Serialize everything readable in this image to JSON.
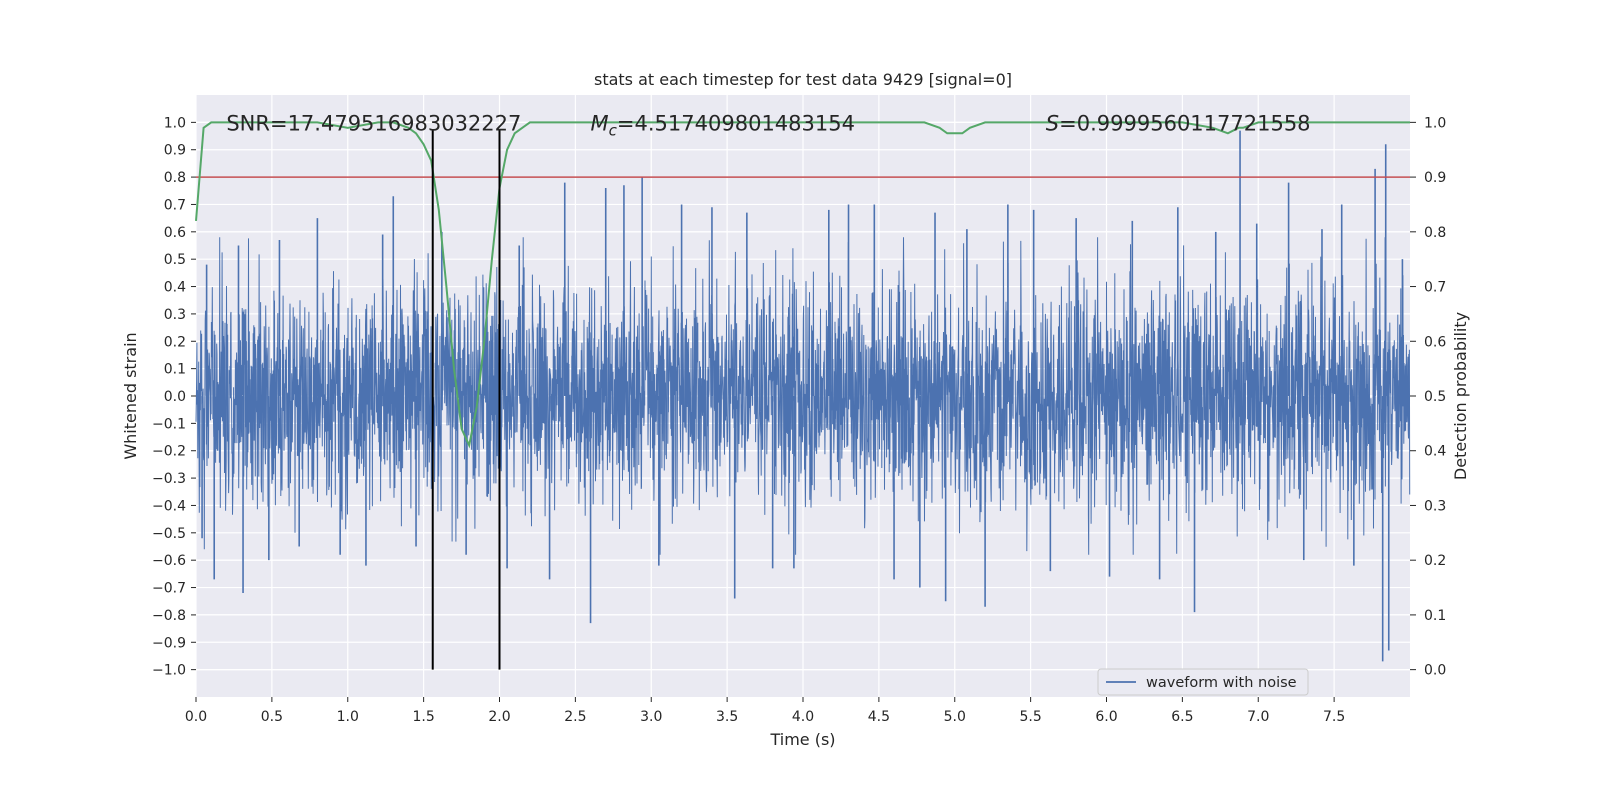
{
  "chart_data": {
    "type": "line",
    "title": "stats at each timestep for test data 9429 [signal=0]",
    "xlabel": "Time (s)",
    "ylabel_left": "Whitened strain",
    "ylabel_right": "Detection probability",
    "xlim": [
      0.0,
      8.0
    ],
    "ylim_left": [
      -1.1,
      1.1
    ],
    "ylim_right": [
      -0.05,
      1.05
    ],
    "grid": true,
    "legend_position": "bottom-right",
    "x_ticks": [
      0.0,
      0.5,
      1.0,
      1.5,
      2.0,
      2.5,
      3.0,
      3.5,
      4.0,
      4.5,
      5.0,
      5.5,
      6.0,
      6.5,
      7.0,
      7.5
    ],
    "x_tick_labels": [
      "0.0",
      "0.5",
      "1.0",
      "1.5",
      "2.0",
      "2.5",
      "3.0",
      "3.5",
      "4.0",
      "4.5",
      "5.0",
      "5.5",
      "6.0",
      "6.5",
      "7.0",
      "7.5"
    ],
    "y_ticks_left": [
      1.0,
      0.9,
      0.8,
      0.7,
      0.6,
      0.5,
      0.4,
      0.3,
      0.2,
      0.1,
      0.0,
      -0.1,
      -0.2,
      -0.3,
      -0.4,
      -0.5,
      -0.6,
      -0.7,
      -0.8,
      -0.9,
      -1.0
    ],
    "y_tick_labels_left": [
      "1.0",
      "0.9",
      "0.8",
      "0.7",
      "0.6",
      "0.5",
      "0.4",
      "0.3",
      "0.2",
      "0.1",
      "0.0",
      "−0.1",
      "−0.2",
      "−0.3",
      "−0.4",
      "−0.5",
      "−0.6",
      "−0.7",
      "−0.8",
      "−0.9",
      "−1.0"
    ],
    "y_ticks_right": [
      1.0,
      0.9,
      0.8,
      0.7,
      0.6,
      0.5,
      0.4,
      0.3,
      0.2,
      0.1,
      0.0
    ],
    "y_tick_labels_right": [
      "1.0",
      "0.9",
      "0.8",
      "0.7",
      "0.6",
      "0.5",
      "0.4",
      "0.3",
      "0.2",
      "0.1",
      "0.0"
    ],
    "annotations": [
      {
        "text": "SNR=17.479516983032227",
        "x": 0.2,
        "y": 1.0
      },
      {
        "text": "Mc=4.517409801483154",
        "x": 2.6,
        "y": 1.0
      },
      {
        "text": "S=0.9999560117721558",
        "x": 5.6,
        "y": 1.0
      }
    ],
    "series": [
      {
        "name": "waveform with noise",
        "axis": "left",
        "color": "#4c72b0",
        "kind": "noise_waveform",
        "sample_rate": 512,
        "duration": 8.0,
        "typical_amplitude": 0.22,
        "peaks": [
          {
            "x": 0.04,
            "y": -0.52
          },
          {
            "x": 0.07,
            "y": 0.48
          },
          {
            "x": 0.12,
            "y": -0.67
          },
          {
            "x": 0.28,
            "y": 0.55
          },
          {
            "x": 0.31,
            "y": -0.72
          },
          {
            "x": 0.48,
            "y": -0.6
          },
          {
            "x": 0.55,
            "y": 0.57
          },
          {
            "x": 0.68,
            "y": -0.55
          },
          {
            "x": 0.8,
            "y": 0.65
          },
          {
            "x": 0.95,
            "y": -0.58
          },
          {
            "x": 1.12,
            "y": -0.62
          },
          {
            "x": 1.23,
            "y": 0.59
          },
          {
            "x": 1.3,
            "y": 0.73
          },
          {
            "x": 1.45,
            "y": -0.55
          },
          {
            "x": 1.62,
            "y": 0.6
          },
          {
            "x": 1.78,
            "y": -0.58
          },
          {
            "x": 2.05,
            "y": -0.63
          },
          {
            "x": 2.13,
            "y": 0.55
          },
          {
            "x": 2.33,
            "y": -0.67
          },
          {
            "x": 2.43,
            "y": 0.78
          },
          {
            "x": 2.6,
            "y": -0.83
          },
          {
            "x": 2.7,
            "y": 0.76
          },
          {
            "x": 2.82,
            "y": 0.77
          },
          {
            "x": 2.94,
            "y": 0.8
          },
          {
            "x": 3.05,
            "y": -0.62
          },
          {
            "x": 3.2,
            "y": 0.7
          },
          {
            "x": 3.4,
            "y": 0.69
          },
          {
            "x": 3.55,
            "y": -0.74
          },
          {
            "x": 3.63,
            "y": 0.67
          },
          {
            "x": 3.8,
            "y": -0.63
          },
          {
            "x": 3.94,
            "y": -0.63
          },
          {
            "x": 4.17,
            "y": 0.68
          },
          {
            "x": 4.3,
            "y": 0.7
          },
          {
            "x": 4.47,
            "y": 0.7
          },
          {
            "x": 4.6,
            "y": -0.67
          },
          {
            "x": 4.77,
            "y": -0.7
          },
          {
            "x": 4.87,
            "y": 0.67
          },
          {
            "x": 4.94,
            "y": -0.75
          },
          {
            "x": 5.08,
            "y": 0.61
          },
          {
            "x": 5.2,
            "y": -0.77
          },
          {
            "x": 5.35,
            "y": 0.7
          },
          {
            "x": 5.52,
            "y": 0.68
          },
          {
            "x": 5.63,
            "y": -0.64
          },
          {
            "x": 5.8,
            "y": 0.65
          },
          {
            "x": 6.02,
            "y": -0.66
          },
          {
            "x": 6.17,
            "y": 0.64
          },
          {
            "x": 6.35,
            "y": -0.67
          },
          {
            "x": 6.47,
            "y": 0.69
          },
          {
            "x": 6.58,
            "y": -0.79
          },
          {
            "x": 6.72,
            "y": 0.6
          },
          {
            "x": 6.88,
            "y": 0.97
          },
          {
            "x": 6.99,
            "y": 0.63
          },
          {
            "x": 7.2,
            "y": 0.78
          },
          {
            "x": 7.3,
            "y": -0.6
          },
          {
            "x": 7.42,
            "y": 0.61
          },
          {
            "x": 7.55,
            "y": 0.7
          },
          {
            "x": 7.63,
            "y": -0.62
          },
          {
            "x": 7.77,
            "y": 0.83
          },
          {
            "x": 7.82,
            "y": -0.97
          },
          {
            "x": 7.84,
            "y": 0.92
          },
          {
            "x": 7.86,
            "y": -0.93
          },
          {
            "x": 7.95,
            "y": 0.5
          }
        ]
      },
      {
        "name": "",
        "axis": "right",
        "color": "#55a868",
        "kind": "line",
        "x": [
          0.0,
          0.05,
          0.1,
          0.2,
          0.3,
          0.6,
          0.8,
          1.0,
          1.2,
          1.3,
          1.4,
          1.45,
          1.5,
          1.55,
          1.6,
          1.65,
          1.7,
          1.75,
          1.8,
          1.85,
          1.9,
          1.95,
          2.0,
          2.05,
          2.1,
          2.15,
          2.2,
          2.3,
          2.5,
          3.0,
          3.5,
          4.0,
          4.5,
          4.8,
          4.9,
          4.95,
          5.0,
          5.05,
          5.1,
          5.2,
          5.5,
          6.0,
          6.5,
          6.7,
          6.8,
          6.87,
          6.9,
          7.0,
          7.5,
          7.8,
          8.0
        ],
        "y": [
          0.82,
          0.99,
          1.0,
          1.0,
          1.0,
          1.0,
          1.0,
          0.99,
          1.0,
          1.0,
          0.99,
          0.98,
          0.96,
          0.93,
          0.84,
          0.7,
          0.55,
          0.44,
          0.41,
          0.48,
          0.6,
          0.75,
          0.88,
          0.95,
          0.98,
          0.99,
          1.0,
          1.0,
          1.0,
          1.0,
          1.0,
          1.0,
          1.0,
          1.0,
          0.99,
          0.98,
          0.98,
          0.98,
          0.99,
          1.0,
          1.0,
          1.0,
          1.0,
          0.99,
          0.98,
          0.99,
          0.99,
          1.0,
          1.0,
          1.0,
          1.0
        ]
      },
      {
        "name": "",
        "axis": "right",
        "color": "#c44e52",
        "kind": "hline",
        "y": 0.9
      }
    ],
    "vertical_lines": [
      {
        "x": 1.56,
        "color": "#000000",
        "ymin": -1.0,
        "ymax": 1.0
      },
      {
        "x": 2.0,
        "color": "#000000",
        "ymin": -1.0,
        "ymax": 1.0
      }
    ]
  }
}
